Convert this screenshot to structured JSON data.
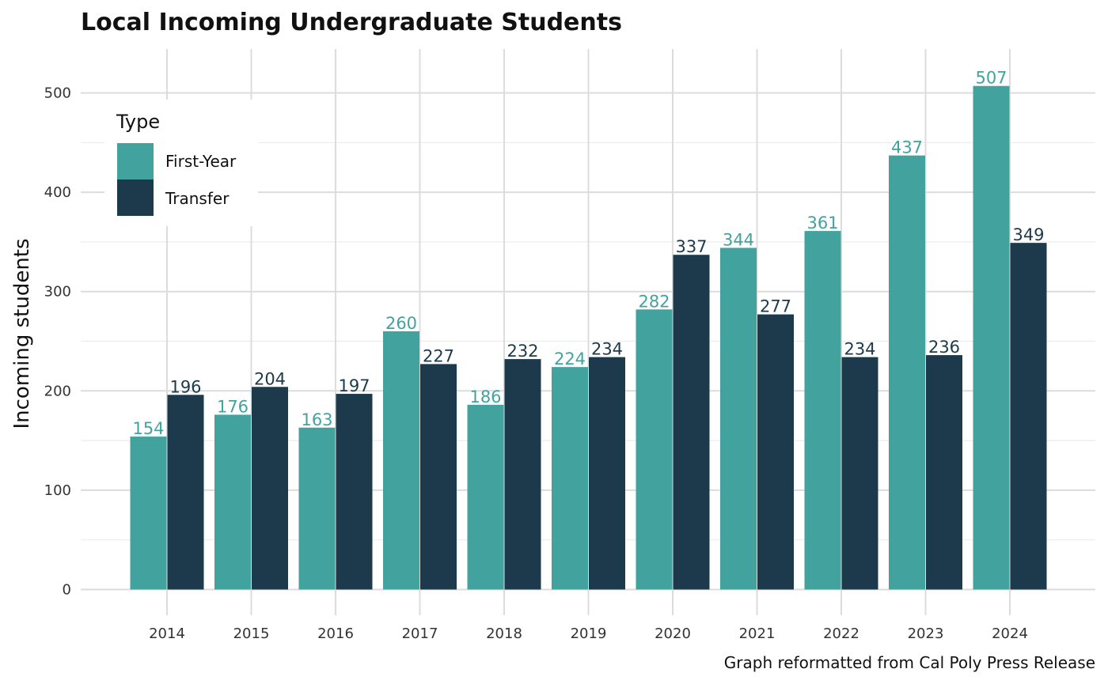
{
  "chart_data": {
    "type": "bar",
    "title": "Local Incoming Undergraduate Students",
    "xlabel": "",
    "ylabel": "Incoming students",
    "caption": "Graph reformatted from Cal Poly Press Release",
    "categories": [
      "2014",
      "2015",
      "2016",
      "2017",
      "2018",
      "2019",
      "2020",
      "2021",
      "2022",
      "2023",
      "2024"
    ],
    "series": [
      {
        "name": "First-Year",
        "color": "#42a39e",
        "values": [
          154,
          176,
          163,
          260,
          186,
          224,
          282,
          344,
          361,
          437,
          507
        ]
      },
      {
        "name": "Transfer",
        "color": "#1c3a4b",
        "values": [
          196,
          204,
          197,
          227,
          232,
          234,
          337,
          277,
          234,
          236,
          349
        ]
      }
    ],
    "ylim": [
      0,
      545
    ],
    "yticks": [
      0,
      100,
      200,
      300,
      400,
      500
    ],
    "grid": true,
    "legend": {
      "title": "Type",
      "position": "top-left-inside"
    }
  }
}
